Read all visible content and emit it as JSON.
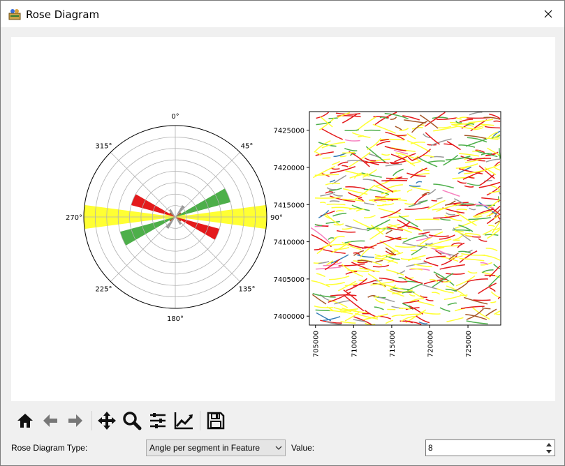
{
  "window": {
    "title": "Rose Diagram"
  },
  "toolbar": {
    "items": [
      {
        "name": "home-icon"
      },
      {
        "name": "back-icon"
      },
      {
        "name": "forward-icon"
      },
      {
        "name": "pan-icon"
      },
      {
        "name": "zoom-icon"
      },
      {
        "name": "configure-subplots-icon"
      },
      {
        "name": "edit-axis-icon"
      },
      {
        "name": "save-icon"
      }
    ]
  },
  "controls": {
    "type_label": "Rose Diagram Type:",
    "type_value": "Angle per segment in Feature",
    "value_label": "Value:",
    "value": "8"
  },
  "chart_data": [
    {
      "type": "polar-bar",
      "theta_ticks": [
        "0°",
        "45°",
        "90°",
        "135°",
        "180°",
        "225°",
        "270°",
        "315°"
      ],
      "series": [
        {
          "color": "#ffff33",
          "bars": [
            {
              "direction": 90,
              "value": 8
            },
            {
              "direction": 270,
              "value": 8
            },
            {
              "direction": 82.5,
              "value": 0.9
            },
            {
              "direction": 262.5,
              "value": 0.9
            },
            {
              "direction": 97.5,
              "value": 0.9
            },
            {
              "direction": 277.5,
              "value": 0.9
            }
          ]
        },
        {
          "color": "#4daf4a",
          "bars": [
            {
              "direction": 67.5,
              "value": 5
            },
            {
              "direction": 247.5,
              "value": 5
            }
          ]
        },
        {
          "color": "#e41a1c",
          "bars": [
            {
              "direction": 112.5,
              "value": 4
            },
            {
              "direction": 292.5,
              "value": 4
            }
          ]
        },
        {
          "color": "#999999",
          "bars": [
            {
              "direction": 37.5,
              "value": 1.2
            },
            {
              "direction": 217.5,
              "value": 1.2
            },
            {
              "direction": 142.5,
              "value": 0.8
            },
            {
              "direction": 322.5,
              "value": 0.8
            }
          ]
        },
        {
          "color": "#a65628",
          "bars": [
            {
              "direction": 52.5,
              "value": 0.6
            },
            {
              "direction": 232.5,
              "value": 0.6
            },
            {
              "direction": 127.5,
              "value": 0.6
            },
            {
              "direction": 307.5,
              "value": 0.6
            }
          ]
        }
      ],
      "rmax": 8
    },
    {
      "type": "map",
      "x_ticks": [
        "705000",
        "710000",
        "715000",
        "720000",
        "725000"
      ],
      "y_ticks": [
        "7425000",
        "7420000",
        "7415000",
        "7410000",
        "7405000",
        "7400000"
      ],
      "xlim": [
        704200,
        729300
      ],
      "ylim": [
        7398800,
        7427500
      ],
      "colors": [
        "#ffff33",
        "#e41a1c",
        "#4daf4a",
        "#999999",
        "#a65628",
        "#377eb8",
        "#f781bf"
      ]
    }
  ]
}
